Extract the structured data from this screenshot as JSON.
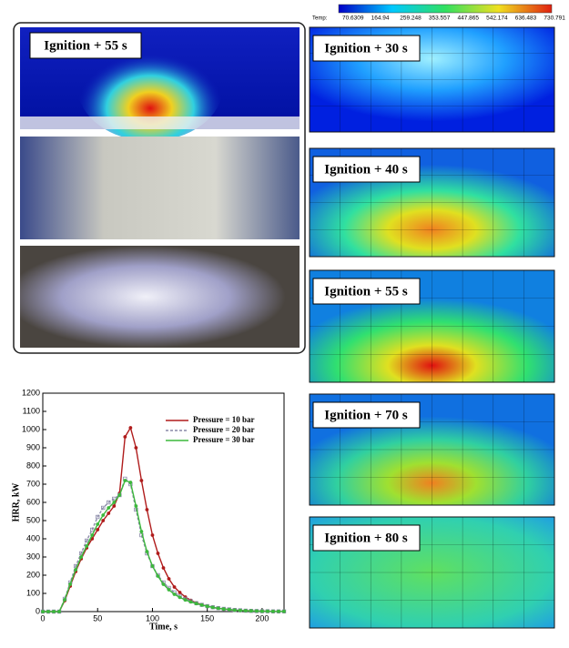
{
  "photo_panel": {
    "label": "Ignition + 55 s"
  },
  "colorbar": {
    "label": "Temp:",
    "ticks": [
      70.6309,
      164.94,
      259.248,
      353.557,
      447.865,
      542.174,
      636.483,
      730.791
    ]
  },
  "simulations": [
    {
      "label": "Ignition + 30 s"
    },
    {
      "label": "Ignition + 40 s"
    },
    {
      "label": "Ignition + 55 s"
    },
    {
      "label": "Ignition + 70 s"
    },
    {
      "label": "Ignition + 80 s"
    }
  ],
  "chart_data": {
    "type": "line",
    "x_label": "Time, s",
    "y_label": "HRR, kW",
    "x": [
      0,
      5,
      10,
      15,
      20,
      25,
      30,
      35,
      40,
      45,
      50,
      55,
      60,
      65,
      70,
      75,
      80,
      85,
      90,
      95,
      100,
      105,
      110,
      115,
      120,
      125,
      130,
      135,
      140,
      145,
      150,
      155,
      160,
      165,
      170,
      175,
      180,
      185,
      190,
      195,
      200,
      205,
      210,
      215,
      220
    ],
    "xlim": [
      0,
      220
    ],
    "xticks": [
      0,
      50,
      100,
      150,
      200
    ],
    "ylim": [
      0,
      1200
    ],
    "yticks": [
      0,
      100,
      200,
      300,
      400,
      500,
      600,
      700,
      800,
      900,
      1000,
      1100,
      1200
    ],
    "legend": "upper right",
    "series": [
      {
        "name": "Pressure = 10 bar",
        "color": "#b01c1c",
        "marker": "circle",
        "values": [
          0,
          0,
          0,
          0,
          60,
          140,
          220,
          290,
          350,
          400,
          450,
          500,
          540,
          580,
          650,
          960,
          1010,
          900,
          720,
          560,
          420,
          320,
          240,
          180,
          135,
          105,
          80,
          62,
          48,
          38,
          30,
          23,
          18,
          14,
          11,
          8,
          6,
          5,
          4,
          3,
          2,
          2,
          1,
          1,
          1
        ]
      },
      {
        "name": "Pressure = 20 bar",
        "color": "#8a8aa8",
        "marker": "square",
        "values": [
          0,
          0,
          0,
          0,
          70,
          160,
          250,
          320,
          390,
          450,
          520,
          570,
          600,
          620,
          640,
          730,
          700,
          560,
          420,
          320,
          250,
          200,
          160,
          130,
          105,
          85,
          70,
          57,
          46,
          37,
          30,
          24,
          19,
          15,
          12,
          9,
          7,
          5,
          4,
          3,
          2,
          2,
          1,
          1,
          1
        ]
      },
      {
        "name": "Pressure = 30 bar",
        "color": "#3cb83c",
        "marker": "circle",
        "values": [
          0,
          0,
          0,
          0,
          65,
          150,
          230,
          300,
          360,
          420,
          480,
          530,
          570,
          600,
          640,
          720,
          710,
          580,
          440,
          330,
          250,
          195,
          150,
          120,
          95,
          78,
          64,
          53,
          44,
          36,
          29,
          23,
          18,
          14,
          11,
          8,
          6,
          5,
          4,
          3,
          2,
          2,
          1,
          1,
          1
        ]
      }
    ]
  }
}
